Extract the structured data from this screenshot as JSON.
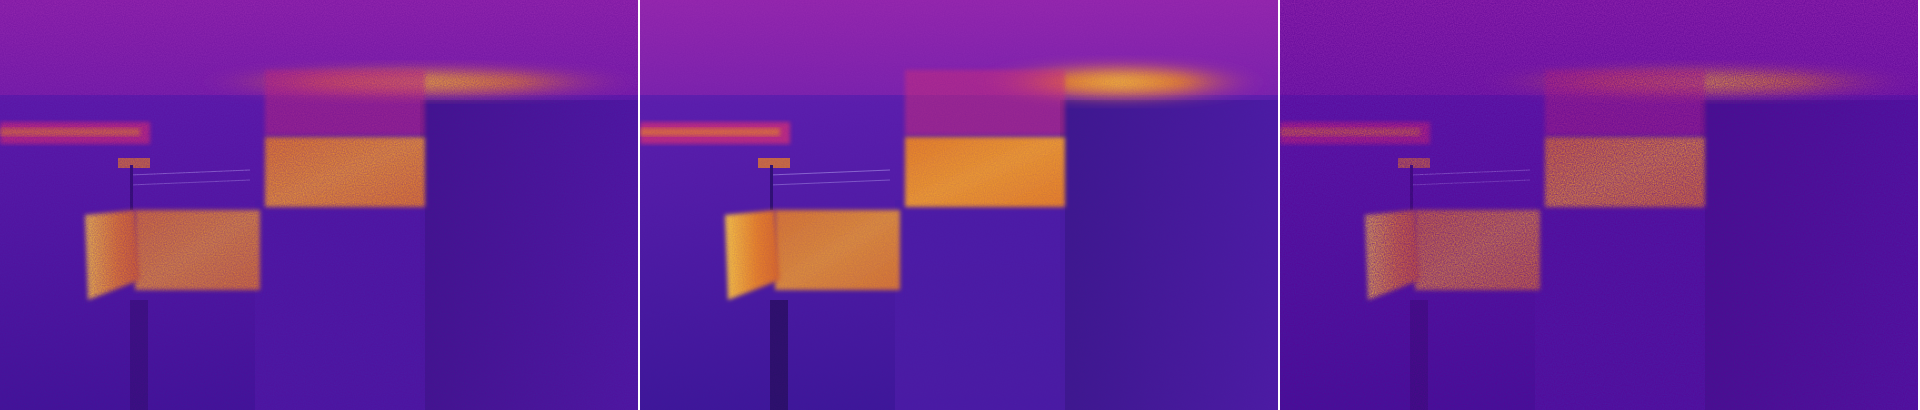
{
  "panels": [
    {
      "id": "left",
      "icon": "thermal-image",
      "noise": "medium"
    },
    {
      "id": "middle",
      "icon": "thermal-image",
      "noise": "low"
    },
    {
      "id": "right",
      "icon": "thermal-image",
      "noise": "high"
    }
  ],
  "colors": {
    "cold": "#3a1a9a",
    "cool": "#5b22b0",
    "mid": "#9a2bb0",
    "warm": "#d4307a",
    "hot": "#f08a20",
    "hottest": "#ffd040"
  }
}
